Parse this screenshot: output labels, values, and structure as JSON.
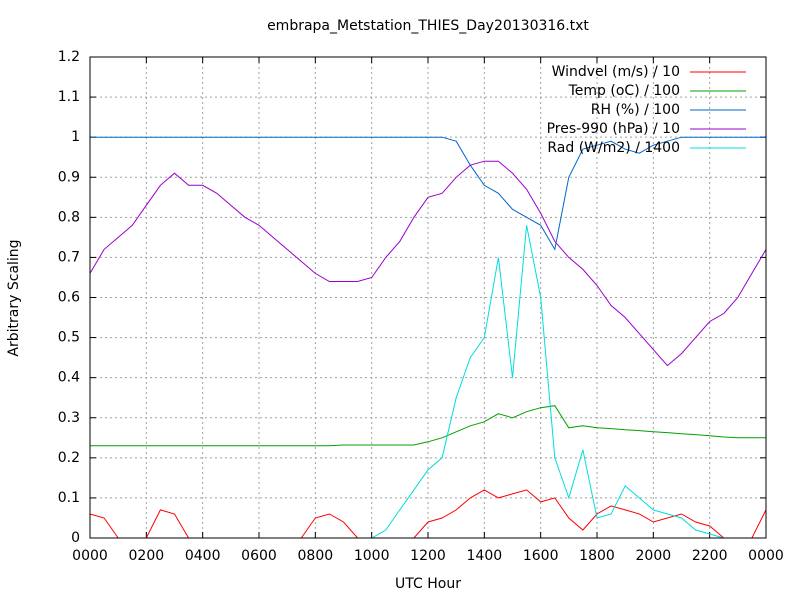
{
  "chart_data": {
    "type": "line",
    "title": "embrapa_Metstation_THIES_Day20130316.txt",
    "x_label": "UTC Hour",
    "y_label": "Arbitrary Scaling",
    "x": [
      0,
      0.5,
      1,
      1.5,
      2,
      2.5,
      3,
      3.5,
      4,
      4.5,
      5,
      5.5,
      6,
      6.5,
      7,
      7.5,
      8,
      8.5,
      9,
      9.5,
      10,
      10.5,
      11,
      11.5,
      12,
      12.5,
      13,
      13.5,
      14,
      14.5,
      15,
      15.5,
      16,
      16.5,
      17,
      17.5,
      18,
      18.5,
      19,
      19.5,
      20,
      20.5,
      21,
      21.5,
      22,
      22.5,
      23,
      23.5,
      24
    ],
    "series": [
      {
        "name": "Windvel (m/s) / 10",
        "color": "#ff0000",
        "values": [
          0.06,
          0.05,
          0,
          0,
          0,
          0.07,
          0.06,
          0,
          0,
          0,
          0,
          0,
          0,
          0,
          0,
          0,
          0.05,
          0.06,
          0.04,
          0,
          0,
          0,
          0,
          0,
          0.04,
          0.05,
          0.07,
          0.1,
          0.12,
          0.1,
          0.11,
          0.12,
          0.09,
          0.1,
          0.05,
          0.02,
          0.06,
          0.08,
          0.07,
          0.06,
          0.04,
          0.05,
          0.06,
          0.04,
          0.03,
          0,
          0,
          0,
          0.07
        ]
      },
      {
        "name": "Temp (oC) / 100",
        "color": "#00a000",
        "values": [
          0.23,
          0.23,
          0.23,
          0.23,
          0.23,
          0.23,
          0.23,
          0.23,
          0.23,
          0.23,
          0.23,
          0.23,
          0.23,
          0.23,
          0.23,
          0.23,
          0.23,
          0.23,
          0.232,
          0.232,
          0.232,
          0.232,
          0.232,
          0.232,
          0.24,
          0.25,
          0.265,
          0.28,
          0.29,
          0.31,
          0.3,
          0.315,
          0.325,
          0.33,
          0.275,
          0.28,
          0.275,
          0.273,
          0.27,
          0.268,
          0.265,
          0.263,
          0.26,
          0.258,
          0.255,
          0.252,
          0.25,
          0.25,
          0.25
        ]
      },
      {
        "name": "RH (%) / 100",
        "color": "#0066cc",
        "values": [
          1,
          1,
          1,
          1,
          1,
          1,
          1,
          1,
          1,
          1,
          1,
          1,
          1,
          1,
          1,
          1,
          1,
          1,
          1,
          1,
          1,
          1,
          1,
          1,
          1,
          1,
          0.99,
          0.93,
          0.88,
          0.86,
          0.82,
          0.8,
          0.78,
          0.72,
          0.9,
          0.97,
          0.98,
          0.99,
          0.97,
          0.96,
          0.98,
          0.99,
          1,
          1,
          1,
          1,
          1,
          1,
          1
        ]
      },
      {
        "name": "Pres-990 (hPa) / 10",
        "color": "#9900cc",
        "values": [
          0.66,
          0.72,
          0.75,
          0.78,
          0.83,
          0.88,
          0.91,
          0.88,
          0.88,
          0.86,
          0.83,
          0.8,
          0.78,
          0.75,
          0.72,
          0.69,
          0.66,
          0.64,
          0.64,
          0.64,
          0.65,
          0.7,
          0.74,
          0.8,
          0.85,
          0.86,
          0.9,
          0.93,
          0.94,
          0.94,
          0.91,
          0.87,
          0.81,
          0.74,
          0.7,
          0.67,
          0.63,
          0.58,
          0.55,
          0.51,
          0.47,
          0.43,
          0.46,
          0.5,
          0.54,
          0.56,
          0.6,
          0.66,
          0.72
        ]
      },
      {
        "name": "Rad (W/m2) / 1400",
        "color": "#00dddd",
        "values": [
          0,
          0,
          0,
          0,
          0,
          0,
          0,
          0,
          0,
          0,
          0,
          0,
          0,
          0,
          0,
          0,
          0,
          0,
          0,
          0,
          0,
          0.02,
          0.07,
          0.12,
          0.17,
          0.2,
          0.35,
          0.45,
          0.5,
          0.7,
          0.4,
          0.78,
          0.6,
          0.2,
          0.1,
          0.22,
          0.05,
          0.06,
          0.13,
          0.1,
          0.07,
          0.06,
          0.05,
          0.02,
          0.01,
          0,
          0,
          0,
          0
        ]
      }
    ],
    "xlim": [
      0,
      24
    ],
    "xticks": [
      {
        "value": 0,
        "label": "0000"
      },
      {
        "value": 2,
        "label": "0200"
      },
      {
        "value": 4,
        "label": "0400"
      },
      {
        "value": 6,
        "label": "0600"
      },
      {
        "value": 8,
        "label": "0800"
      },
      {
        "value": 10,
        "label": "1000"
      },
      {
        "value": 12,
        "label": "1200"
      },
      {
        "value": 14,
        "label": "1400"
      },
      {
        "value": 16,
        "label": "1600"
      },
      {
        "value": 18,
        "label": "1800"
      },
      {
        "value": 20,
        "label": "2000"
      },
      {
        "value": 22,
        "label": "2200"
      },
      {
        "value": 24,
        "label": "0000"
      }
    ],
    "ylim": [
      0,
      1.2
    ],
    "yticks": [
      0,
      0.1,
      0.2,
      0.3,
      0.4,
      0.5,
      0.6,
      0.7,
      0.8,
      0.9,
      1,
      1.1,
      1.2
    ],
    "grid": true,
    "legend": "top-right"
  }
}
